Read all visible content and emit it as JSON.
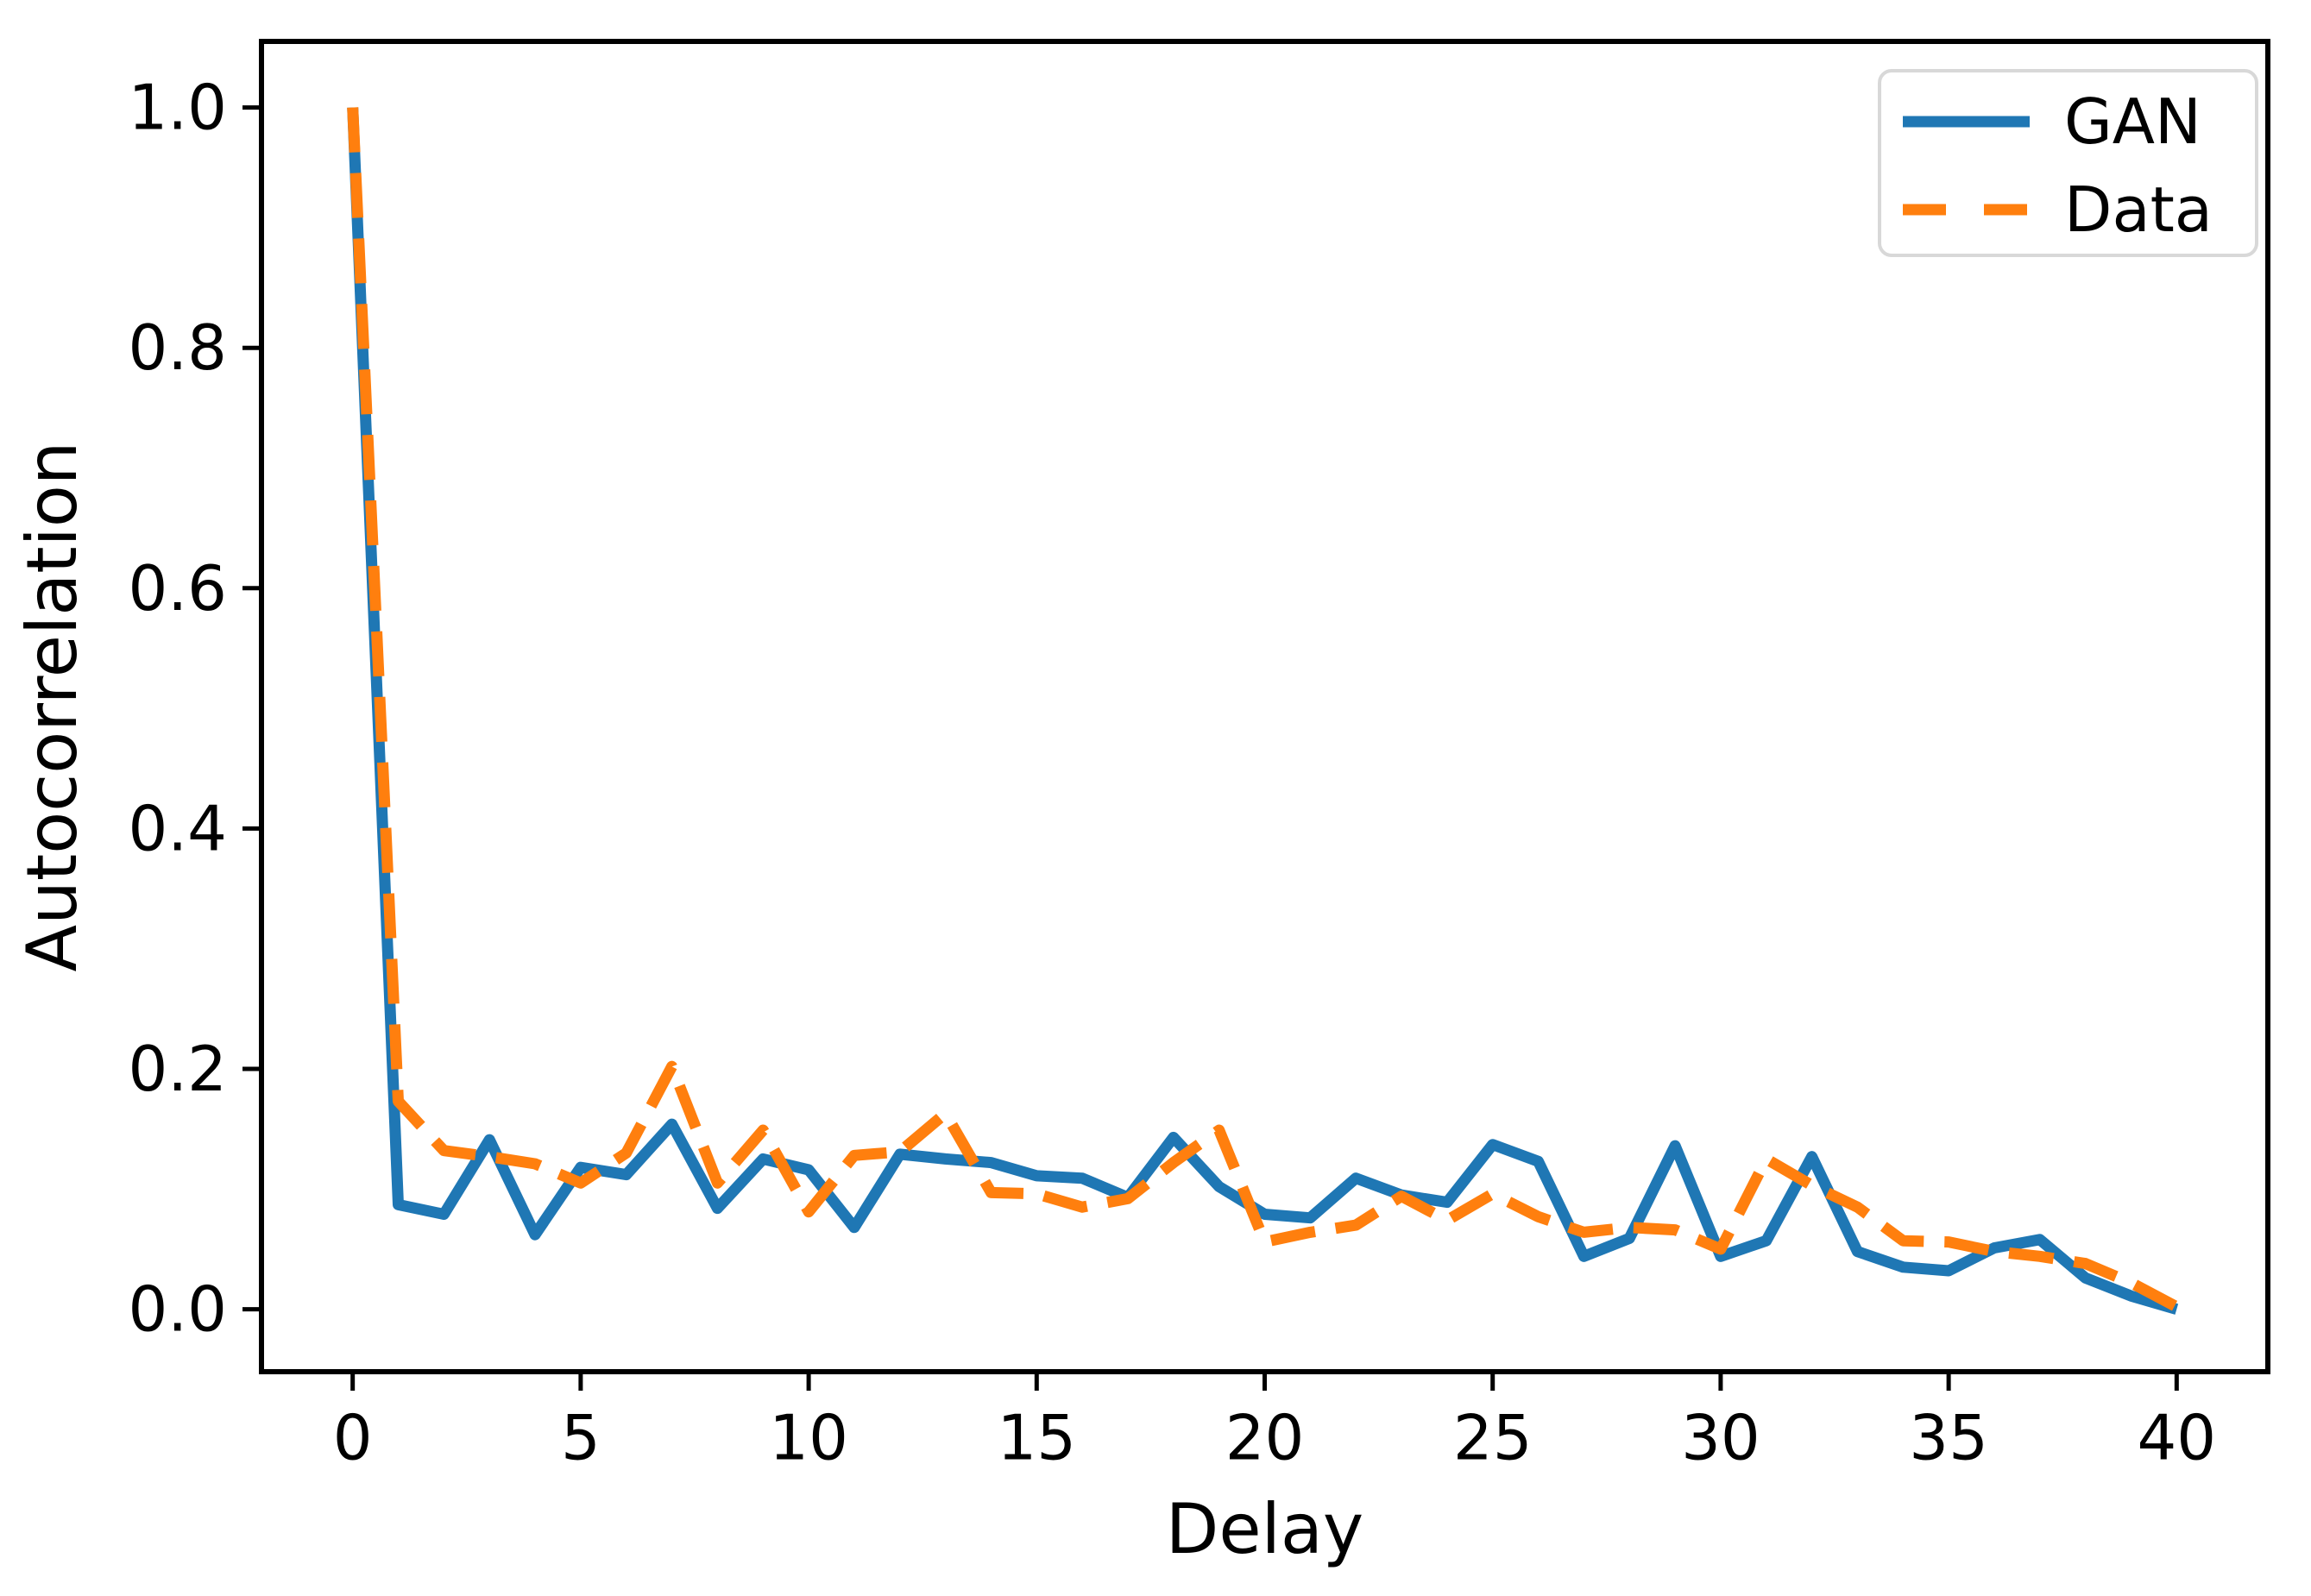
{
  "chart_data": {
    "type": "line",
    "title": "",
    "xlabel": "Delay",
    "ylabel": "Autocorrelation",
    "xlim": [
      -2,
      42
    ],
    "ylim": [
      -0.052,
      1.055
    ],
    "xticks": [
      0,
      5,
      10,
      15,
      20,
      25,
      30,
      35,
      40
    ],
    "xtick_labels": [
      "0",
      "5",
      "10",
      "15",
      "20",
      "25",
      "30",
      "35",
      "40"
    ],
    "yticks": [
      0.0,
      0.2,
      0.4,
      0.6,
      0.8,
      1.0
    ],
    "ytick_labels": [
      "0.0",
      "0.2",
      "0.4",
      "0.6",
      "0.8",
      "1.0"
    ],
    "grid": false,
    "legend_position": "upper right",
    "x": [
      0,
      1,
      2,
      3,
      4,
      5,
      6,
      7,
      8,
      9,
      10,
      11,
      12,
      13,
      14,
      15,
      16,
      17,
      18,
      19,
      20,
      21,
      22,
      23,
      24,
      25,
      26,
      27,
      28,
      29,
      30,
      31,
      32,
      33,
      34,
      35,
      36,
      37,
      38,
      39,
      40
    ],
    "series": [
      {
        "name": "GAN",
        "color": "#1f77b4",
        "style": "solid",
        "values": [
          1.0,
          0.087,
          0.079,
          0.141,
          0.062,
          0.118,
          0.112,
          0.154,
          0.084,
          0.125,
          0.116,
          0.068,
          0.129,
          0.125,
          0.122,
          0.111,
          0.109,
          0.093,
          0.143,
          0.102,
          0.079,
          0.076,
          0.109,
          0.095,
          0.089,
          0.137,
          0.123,
          0.044,
          0.059,
          0.136,
          0.044,
          0.057,
          0.127,
          0.048,
          0.035,
          0.032,
          0.051,
          0.058,
          0.026,
          0.011,
          0.0
        ]
      },
      {
        "name": "Data",
        "color": "#ff7f0e",
        "style": "dashed",
        "values": [
          1.0,
          0.173,
          0.132,
          0.127,
          0.121,
          0.105,
          0.13,
          0.202,
          0.105,
          0.149,
          0.081,
          0.128,
          0.131,
          0.163,
          0.097,
          0.096,
          0.085,
          0.092,
          0.122,
          0.149,
          0.056,
          0.064,
          0.07,
          0.094,
          0.074,
          0.096,
          0.077,
          0.064,
          0.068,
          0.066,
          0.05,
          0.125,
          0.103,
          0.085,
          0.057,
          0.056,
          0.048,
          0.044,
          0.038,
          0.022,
          0.002
        ]
      }
    ]
  },
  "style": {
    "axis_color": "#000000",
    "background": "#ffffff",
    "legend_border": "#d8d8d8",
    "legend_fill": "#ffffff"
  }
}
